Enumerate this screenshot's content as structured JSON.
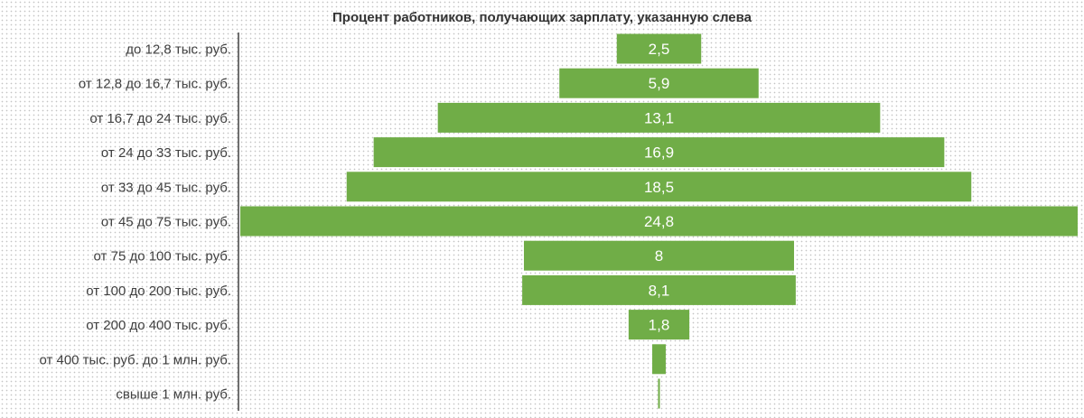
{
  "chart_data": {
    "type": "bar",
    "orientation": "horizontal",
    "layout": "funnel-centered",
    "title": "Процент работников, получающих зарплату, указанную слева",
    "xlabel": "",
    "ylabel": "",
    "grid": false,
    "legend": "none",
    "bar_color": "#70ad47",
    "label_color": "#ffffff",
    "categories": [
      "до 12,8 тыс. руб.",
      "от 12,8 до 16,7 тыс. руб.",
      "от 16,7 до 24 тыс. руб.",
      "от 24 до 33 тыс. руб.",
      "от 33 до 45 тыс. руб.",
      "от 45 до 75 тыс. руб.",
      "от 75 до 100 тыс. руб.",
      "от 100 до 200 тыс. руб.",
      "от 200 до 400 тыс. руб.",
      "от 400 тыс. руб. до 1 млн. руб.",
      "свыше 1 млн. руб."
    ],
    "values": [
      2.5,
      5.9,
      13.1,
      16.9,
      18.5,
      24.8,
      8,
      8.1,
      1.8,
      0.4,
      0.05
    ],
    "value_labels": [
      "2,5",
      "5,9",
      "13,1",
      "16,9",
      "18,5",
      "24,8",
      "8",
      "8,1",
      "1,8",
      "",
      ""
    ]
  }
}
